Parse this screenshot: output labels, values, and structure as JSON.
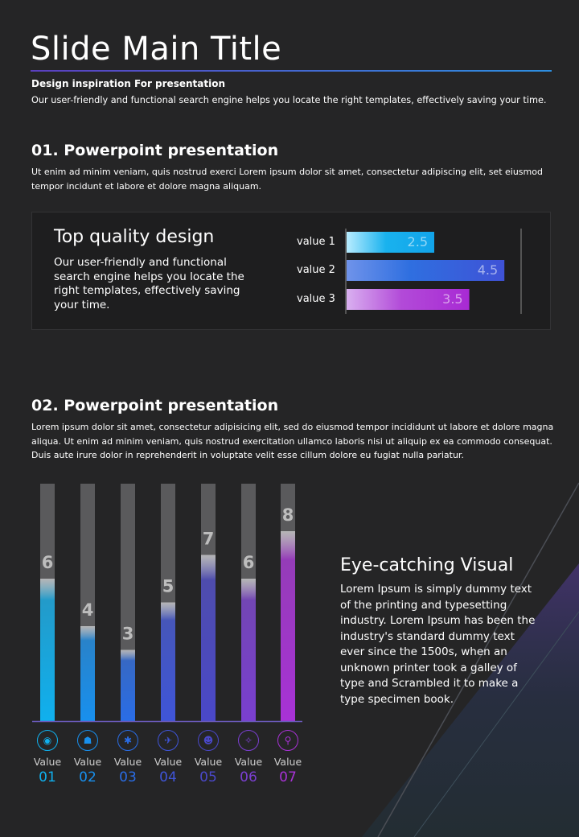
{
  "header": {
    "title": "Slide Main Title",
    "subtitle": "Design inspiration For presentation",
    "intro": "Our user-friendly and functional search engine helps you locate the right templates, effectively saving your time."
  },
  "section1": {
    "title": "01. Powerpoint presentation",
    "text": "Ut enim ad minim veniam, quis nostrud exerci  Lorem ipsum dolor sit amet, consectetur adipiscing elit, set eiusmod tempor incidunt et labore et dolore magna aliquam."
  },
  "card": {
    "title": "Top quality design",
    "text": "Our user-friendly and functional search engine helps you locate the right templates, effectively saving your time."
  },
  "chart_data": [
    {
      "type": "bar",
      "orientation": "horizontal",
      "categories": [
        "value 1",
        "value 2",
        "value 3"
      ],
      "values": [
        2.5,
        4.5,
        3.5
      ],
      "xlim": [
        0,
        5
      ],
      "colors": [
        "#1fb8f0",
        "#2f6fe0",
        "#b13fd8"
      ]
    },
    {
      "type": "bar",
      "orientation": "vertical",
      "categories": [
        "01",
        "02",
        "03",
        "04",
        "05",
        "06",
        "07"
      ],
      "values": [
        6,
        4,
        3,
        5,
        7,
        6,
        8
      ],
      "ylim": [
        0,
        10
      ],
      "category_label": "Value",
      "colors": [
        "#10b0ee",
        "#1890ee",
        "#2a6de6",
        "#3f55d8",
        "#4a48c8",
        "#7a3fd0",
        "#a832d6"
      ],
      "icons": [
        "eye-icon",
        "robot-icon",
        "satellite-icon",
        "plane-icon",
        "alien-icon",
        "constellation-icon",
        "rocket-icon"
      ]
    }
  ],
  "section2": {
    "title": "02. Powerpoint presentation",
    "text": "Lorem ipsum dolor sit amet, consectetur adipisicing elit, sed do eiusmod tempor incididunt ut labore et dolore magna aliqua. Ut enim ad minim veniam, quis nostrud exercitation ullamco laboris nisi ut aliquip ex ea commodo consequat. Duis aute irure dolor in reprehenderit in voluptate velit esse cillum dolore eu fugiat nulla pariatur."
  },
  "visual": {
    "title": "Eye-catching Visual",
    "text": "Lorem Ipsum is simply dummy text of the printing and typesetting industry. Lorem Ipsum has been the industry's standard dummy text ever since the 1500s, when an unknown printer took a galley of type and Scrambled it to make a type specimen book."
  }
}
